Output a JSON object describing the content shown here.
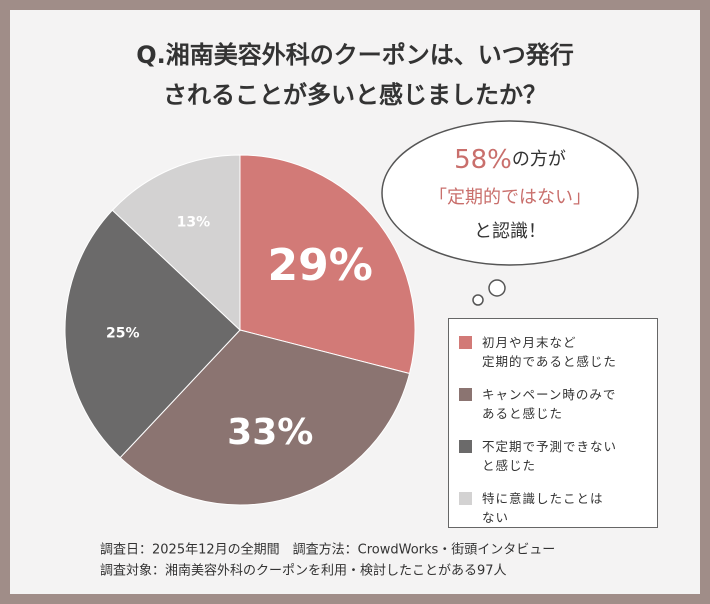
{
  "title_lines": [
    "Q.湘南美容外科のクーポンは、いつ発行",
    "されることが多いと感じましたか？"
  ],
  "chart_data": {
    "type": "pie",
    "categories": [
      "初月や月末など\n定期的であると感じた",
      "キャンペーン時のみで\nあると感じた",
      "不定期で予測できない\nと感じた",
      "特に意識したことは\nない"
    ],
    "values": [
      29,
      33,
      25,
      13
    ],
    "value_labels": [
      "29%",
      "33%",
      "25%",
      "13%"
    ],
    "colors": [
      "#d27a77",
      "#8b7471",
      "#6b6a6a",
      "#d3d2d2"
    ]
  },
  "callout": {
    "highlight": "58%",
    "line1_rest": "の方が",
    "line2": "「定期的ではない」",
    "line3": "と認識！"
  },
  "footnotes": [
    "調査日：2025年12月の全期間　調査方法：CrowdWorks・街頭インタビュー",
    "調査対象：湘南美容外科のクーポンを利用・検討したことがある97人"
  ]
}
